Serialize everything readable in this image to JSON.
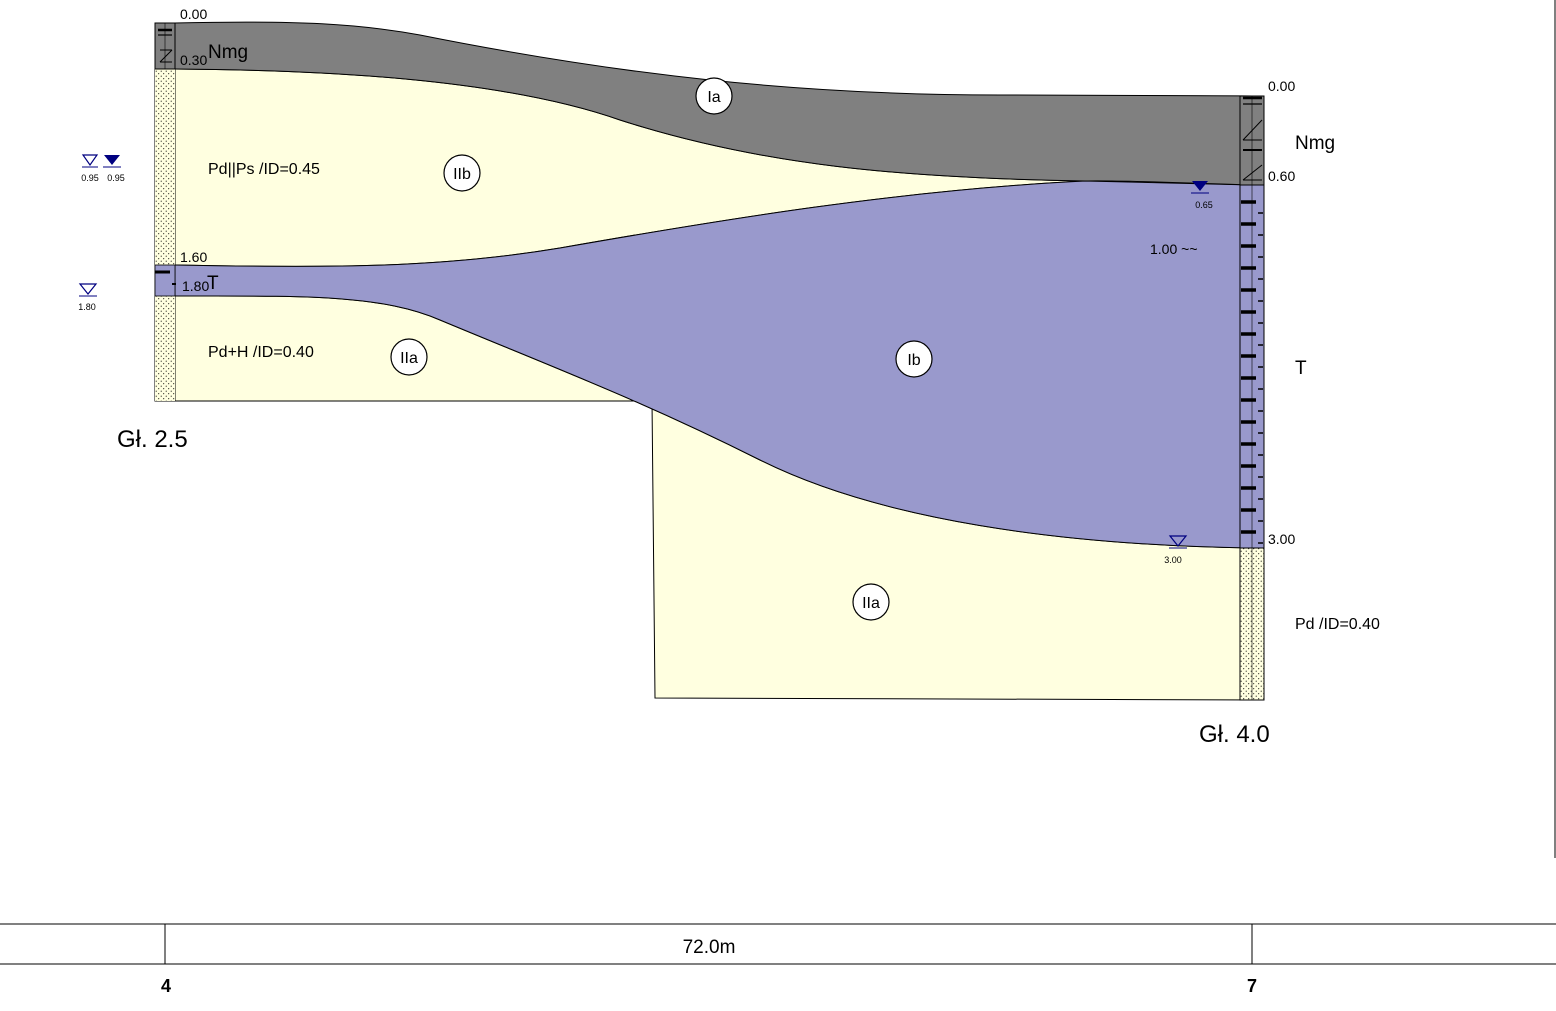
{
  "layers": {
    "colors": {
      "fill_made_ground": "#808080",
      "fill_sand": "#ffffe0",
      "fill_peat": "#9999cc",
      "water_mark": "#000080"
    },
    "labels": {
      "made_ground_left": "Nmg",
      "made_ground_right": "Nmg",
      "sand_upper": "Pd||Ps /ID=0.45",
      "peat_left": "T",
      "sand_lower": "Pd+H /ID=0.40",
      "peat_right": "T",
      "sand_right": "Pd /ID=0.40",
      "peat_note": "1.00 ~~"
    },
    "geotech_layers": {
      "ia": "Ia",
      "iib": "IIb",
      "iia_left": "IIa",
      "ib": "Ib",
      "iia_right": "IIa"
    }
  },
  "boreholes": {
    "left": {
      "number": "4",
      "depth_label": "Gł. 2.5",
      "depths": [
        "0.00",
        "0.30",
        "1.60",
        "1.80"
      ],
      "water_levels": [
        "0.95",
        "0.95",
        "1.80"
      ]
    },
    "right": {
      "number": "7",
      "depth_label": "Gł. 4.0",
      "depths": [
        "0.00",
        "0.60",
        "3.00"
      ],
      "water_levels": [
        "0.65",
        "3.00"
      ]
    }
  },
  "distance": "72.0m"
}
